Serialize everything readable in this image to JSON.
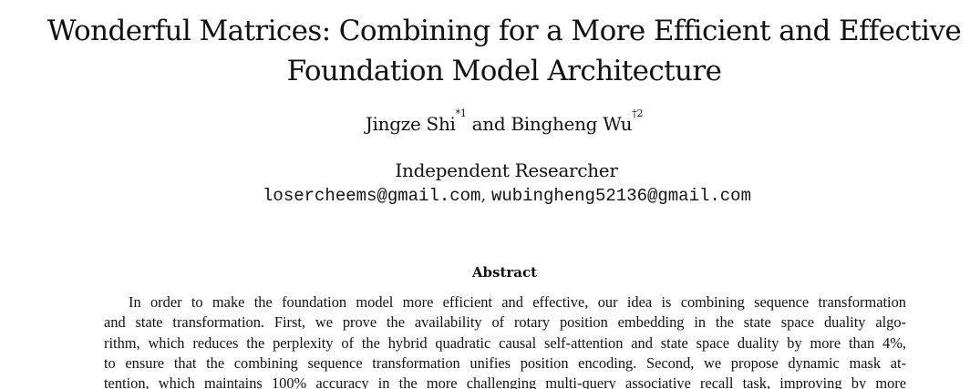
{
  "paper": {
    "title_lines": [
      "Wonderful Matrices: Combining for a More Efficient and Effective",
      "Foundation Model Architecture"
    ],
    "authors": [
      {
        "name": "Jingze Shi",
        "marks": "*1"
      },
      {
        "name": "Bingheng Wu",
        "marks": "†2"
      }
    ],
    "author_joiner": "and",
    "affiliation": "Independent Researcher",
    "emails": [
      "losercheems@gmail.com",
      "wubingheng52136@gmail.com"
    ],
    "email_separator": ",",
    "abstract_heading": "Abstract",
    "abstract_lines": [
      "In order to make the foundation model more efficient and effective, our idea is combining sequence transformation",
      "and state transformation. First, we prove the availability of rotary position embedding in the state space duality algo-",
      "rithm, which reduces the perplexity of the hybrid quadratic causal self-attention and state space duality by more than 4%,",
      "to ensure that the combining sequence transformation unifies position encoding. Second, we propose dynamic mask at-",
      "tention, which maintains 100% accuracy in the more challenging multi-query associative recall task, improving by more"
    ]
  }
}
